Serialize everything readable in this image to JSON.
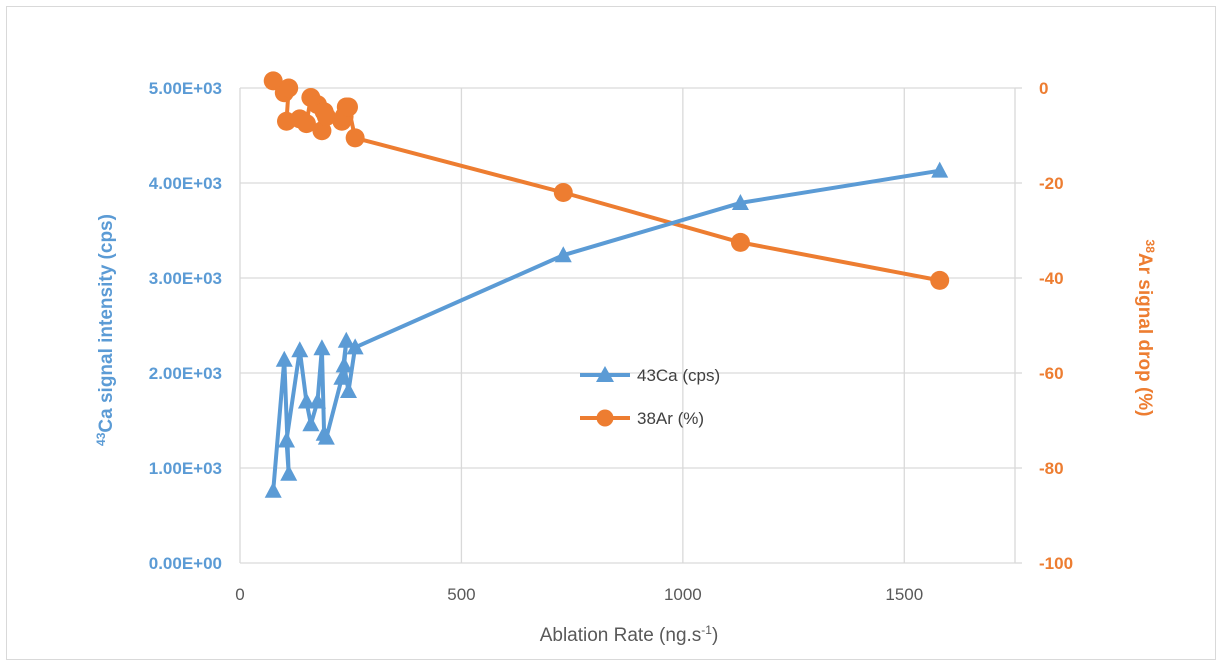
{
  "colors": {
    "ca": "#5b9bd5",
    "ar": "#ed7d31",
    "grid": "#d9d9d9",
    "axis_text": "#595959"
  },
  "chart_data": {
    "type": "line",
    "title": "",
    "xlabel": {
      "main": "Ablation Rate (ng.s",
      "sup": "-1",
      "end": ")"
    },
    "ylabel_left": {
      "sup": "43",
      "main": "Ca signal intensity (cps)"
    },
    "ylabel_right": {
      "sup": "38",
      "main": "Ar signal drop (%)"
    },
    "xlim": [
      0,
      1750
    ],
    "ylim_left": [
      0,
      5000
    ],
    "ylim_right": [
      -100,
      0
    ],
    "x_ticks": [
      {
        "v": 0,
        "label": "0"
      },
      {
        "v": 500,
        "label": "500"
      },
      {
        "v": 1000,
        "label": "1000"
      },
      {
        "v": 1500,
        "label": "1500"
      }
    ],
    "y_ticks_left": [
      {
        "v": 0,
        "label": "0.00E+00"
      },
      {
        "v": 1000,
        "label": "1.00E+03"
      },
      {
        "v": 2000,
        "label": "2.00E+03"
      },
      {
        "v": 3000,
        "label": "3.00E+03"
      },
      {
        "v": 4000,
        "label": "4.00E+03"
      },
      {
        "v": 5000,
        "label": "5.00E+03"
      }
    ],
    "y_ticks_right": [
      {
        "v": 0,
        "label": "0"
      },
      {
        "v": -20,
        "label": "-20"
      },
      {
        "v": -40,
        "label": "-40"
      },
      {
        "v": -60,
        "label": "-60"
      },
      {
        "v": -80,
        "label": "-80"
      },
      {
        "v": -100,
        "label": "-100"
      }
    ],
    "grid": true,
    "legend_position": "center",
    "series": [
      {
        "name": "43Ca (cps)",
        "axis": "left",
        "marker": "triangle",
        "x": [
          75,
          100,
          110,
          105,
          135,
          150,
          160,
          175,
          185,
          190,
          195,
          230,
          240,
          235,
          245,
          260,
          730,
          1130,
          1580
        ],
        "y": [
          760,
          2140,
          940,
          1290,
          2240,
          1700,
          1460,
          1700,
          2260,
          1360,
          1320,
          1950,
          2340,
          2080,
          1810,
          2270,
          3240,
          3790,
          4130
        ]
      },
      {
        "name": "38Ar (%)",
        "axis": "right",
        "marker": "circle",
        "x": [
          75,
          100,
          110,
          105,
          135,
          150,
          160,
          175,
          185,
          190,
          195,
          230,
          240,
          235,
          245,
          260,
          730,
          1130,
          1580
        ],
        "y": [
          1.5,
          -1,
          0,
          -7,
          -6.5,
          -7.5,
          -2,
          -3.5,
          -9,
          -5,
          -6,
          -7,
          -4,
          -6,
          -4,
          -10.5,
          -22,
          -32.5,
          -40.5
        ]
      }
    ]
  }
}
